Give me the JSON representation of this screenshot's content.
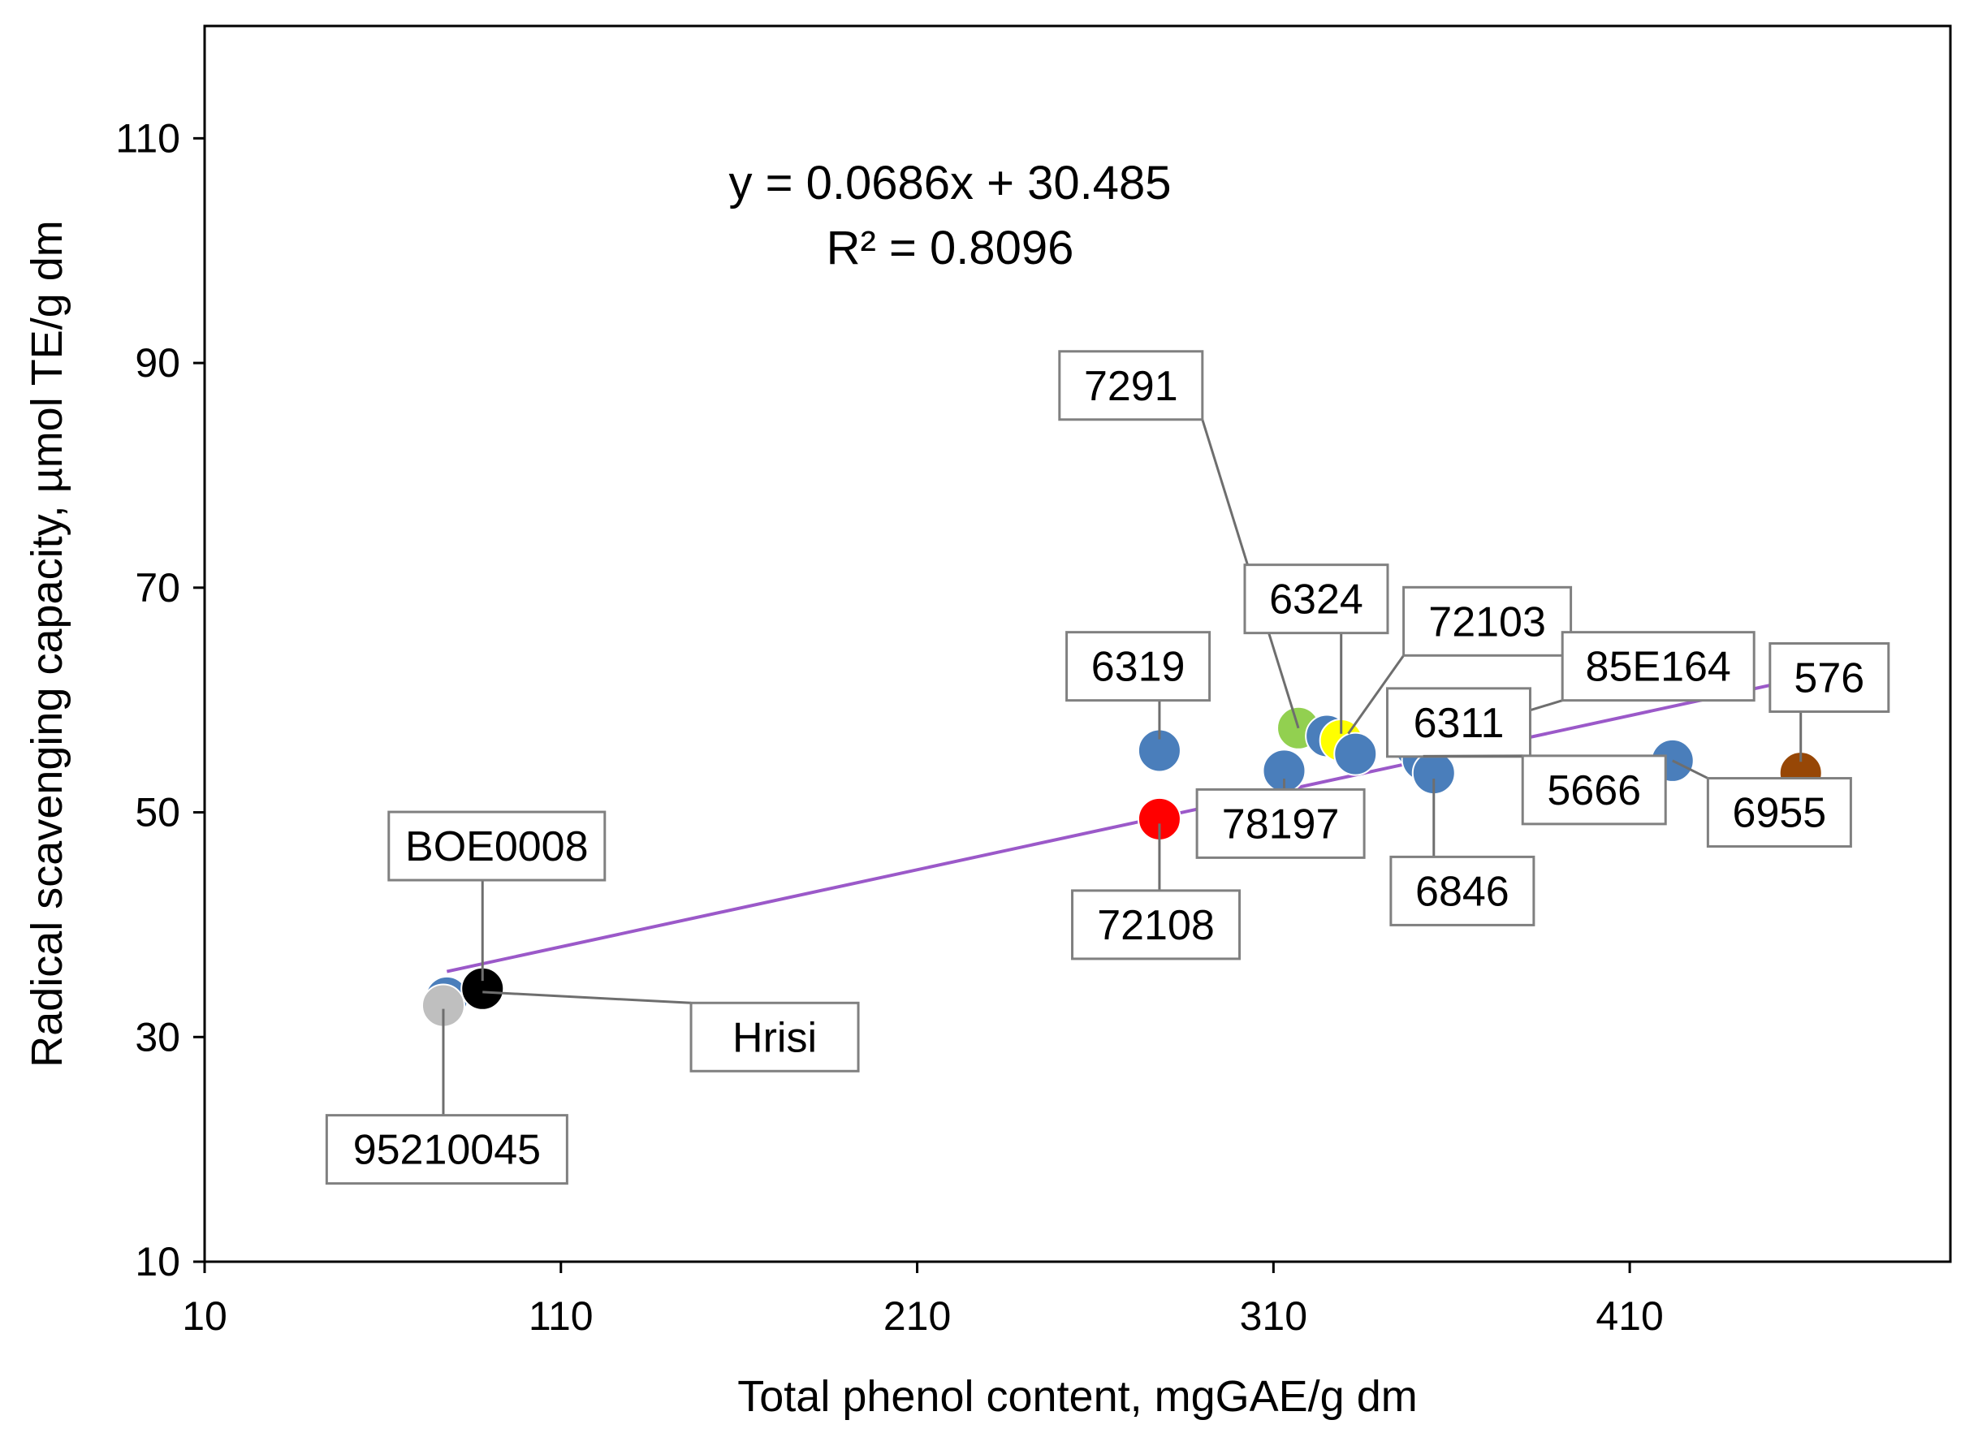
{
  "chart_data": {
    "type": "scatter",
    "xlabel": "Total phenol content, mgGAE/g dm",
    "ylabel": "Radical scavenging capacity, µmol TE/g dm",
    "xlim": [
      10,
      500
    ],
    "ylim": [
      10,
      120
    ],
    "x_ticks": [
      "10",
      "110",
      "210",
      "310",
      "410"
    ],
    "y_ticks": [
      "10",
      "30",
      "50",
      "70",
      "90",
      "110"
    ],
    "x_tick_values": [
      10,
      110,
      210,
      310,
      410
    ],
    "y_tick_values": [
      10,
      30,
      50,
      70,
      90,
      110
    ],
    "equation": "y = 0.0686x + 30.485",
    "r_squared": "R² = 0.8096",
    "trendline": {
      "slope": 0.0686,
      "intercept": 30.485,
      "x_start": 78,
      "x_end": 458,
      "color": "#9b59c9"
    },
    "points": [
      {
        "x": 78,
        "y": 33.5,
        "color": "#4a7ebb"
      },
      {
        "x": 77,
        "y": 32.8,
        "color": "#bfbfbf"
      },
      {
        "x": 88,
        "y": 34.3,
        "color": "#000000"
      },
      {
        "x": 278,
        "y": 55.5,
        "color": "#4a7ebb"
      },
      {
        "x": 278,
        "y": 49.4,
        "color": "#ff0000"
      },
      {
        "x": 313,
        "y": 53.7,
        "color": "#4a7ebb"
      },
      {
        "x": 317,
        "y": 57.5,
        "color": "#92d050"
      },
      {
        "x": 325,
        "y": 56.8,
        "color": "#4a7ebb"
      },
      {
        "x": 329,
        "y": 56.4,
        "color": "#ffff00"
      },
      {
        "x": 333,
        "y": 55.2,
        "color": "#4a7ebb"
      },
      {
        "x": 350,
        "y": 55.8,
        "color": "#4a7ebb"
      },
      {
        "x": 352,
        "y": 54.7,
        "color": "#4a7ebb"
      },
      {
        "x": 355,
        "y": 53.5,
        "color": "#4a7ebb"
      },
      {
        "x": 422,
        "y": 54.6,
        "color": "#4a7ebb"
      },
      {
        "x": 458,
        "y": 53.5,
        "color": "#974706"
      }
    ],
    "annotations": [
      {
        "label": "7291",
        "box": [
          270,
          88,
          1.0
        ],
        "target": [
          317,
          57.5
        ]
      },
      {
        "label": "6324",
        "box": [
          322,
          69,
          1.0
        ],
        "target": [
          329,
          57
        ]
      },
      {
        "label": "72103",
        "box": [
          370,
          67,
          1.0
        ],
        "target": [
          331,
          57
        ]
      },
      {
        "label": "6319",
        "box": [
          272,
          63,
          1.0
        ],
        "target": [
          278,
          56.5
        ]
      },
      {
        "label": "85E164",
        "box": [
          418,
          63,
          1.0
        ],
        "target": [
          350,
          56
        ]
      },
      {
        "label": "576",
        "box": [
          466,
          62,
          1.0
        ],
        "target": [
          458,
          54.5
        ]
      },
      {
        "label": "6311",
        "box": [
          362,
          58,
          1.0
        ],
        "target": [
          355,
          55
        ]
      },
      {
        "label": "5666",
        "box": [
          400,
          52,
          1.0
        ],
        "target": [
          352,
          55
        ]
      },
      {
        "label": "6955",
        "box": [
          452,
          50,
          1.0
        ],
        "target": [
          422,
          54.6
        ]
      },
      {
        "label": "78197",
        "box": [
          312,
          49,
          1.0
        ],
        "target": [
          313,
          53
        ]
      },
      {
        "label": "72108",
        "box": [
          277,
          40,
          1.0
        ],
        "target": [
          278,
          49
        ]
      },
      {
        "label": "6846",
        "box": [
          363,
          43,
          1.0
        ],
        "target": [
          355,
          53
        ]
      },
      {
        "label": "BOE0008",
        "box": [
          92,
          47,
          1.0
        ],
        "target": [
          88,
          35
        ]
      },
      {
        "label": "Hrisi",
        "box": [
          170,
          30,
          1.0
        ],
        "target": [
          88,
          34
        ]
      },
      {
        "label": "95210045",
        "box": [
          78,
          20,
          1.0
        ],
        "target": [
          77,
          32.5
        ]
      }
    ]
  }
}
